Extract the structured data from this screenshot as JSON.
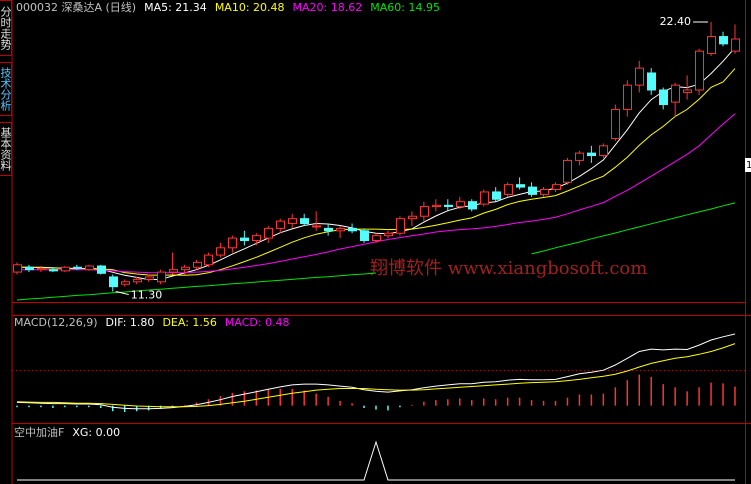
{
  "tabs": [
    "分时走势",
    "技术分析",
    "基本资料"
  ],
  "watermark": "翔博软件 www.xiangbosoft.com",
  "side_marker": "1",
  "chart_data": [
    {
      "type": "candlestick",
      "title": "000032 深桑达A (日线)",
      "high_label": "22.40",
      "low_label": "11.30",
      "up_color": "#ff3232",
      "down_color": "#54fcfc",
      "open": [
        12.1,
        12.3,
        12.2,
        12.2,
        12.15,
        12.3,
        12.2,
        12.35,
        11.9,
        11.6,
        11.7,
        11.8,
        11.7,
        12.1,
        12.2,
        12.3,
        12.4,
        12.8,
        13.1,
        13.5,
        13.4,
        13.5,
        13.9,
        14.1,
        14.3,
        14.0,
        13.9,
        13.8,
        13.9,
        13.8,
        13.4,
        13.6,
        13.7,
        14.3,
        14.4,
        14.8,
        14.85,
        14.8,
        15.0,
        14.9,
        15.4,
        15.3,
        15.7,
        15.6,
        15.3,
        15.5,
        15.8,
        16.7,
        17.0,
        16.9,
        17.6,
        18.8,
        19.8,
        20.3,
        19.6,
        19.1,
        19.5,
        19.6,
        21.1,
        21.8,
        21.2
      ],
      "high": [
        12.5,
        12.4,
        12.35,
        12.3,
        12.35,
        12.4,
        12.4,
        12.4,
        12.0,
        11.8,
        11.9,
        12.0,
        12.2,
        12.9,
        12.4,
        12.6,
        12.9,
        13.3,
        13.6,
        13.8,
        13.7,
        14.0,
        14.3,
        14.5,
        14.5,
        14.6,
        14.1,
        14.0,
        14.1,
        13.9,
        13.7,
        13.8,
        14.4,
        14.6,
        15.0,
        15.1,
        15.1,
        15.2,
        15.1,
        15.5,
        15.6,
        15.8,
        16.0,
        15.8,
        15.6,
        15.8,
        16.8,
        17.1,
        17.3,
        17.4,
        19.0,
        20.0,
        20.8,
        20.5,
        19.7,
        19.9,
        20.2,
        21.3,
        22.4,
        22.0,
        22.3
      ],
      "low": [
        12.0,
        12.1,
        12.1,
        12.1,
        12.1,
        12.2,
        12.15,
        12.0,
        11.3,
        11.5,
        11.6,
        11.7,
        11.6,
        12.0,
        12.0,
        12.2,
        12.3,
        12.7,
        12.9,
        13.2,
        13.2,
        13.3,
        13.7,
        13.9,
        14.0,
        13.8,
        13.6,
        13.5,
        13.7,
        13.3,
        13.3,
        13.5,
        13.6,
        14.0,
        14.2,
        14.6,
        14.6,
        14.7,
        14.6,
        14.8,
        15.0,
        15.2,
        15.5,
        15.2,
        15.2,
        15.4,
        15.7,
        16.5,
        16.6,
        16.8,
        17.5,
        18.5,
        19.5,
        19.4,
        18.8,
        18.5,
        19.2,
        19.4,
        21.0,
        21.4,
        21.1
      ],
      "close": [
        12.4,
        12.2,
        12.25,
        12.15,
        12.3,
        12.25,
        12.35,
        12.05,
        11.5,
        11.7,
        11.8,
        11.9,
        12.1,
        12.2,
        12.3,
        12.5,
        12.8,
        13.1,
        13.5,
        13.4,
        13.6,
        13.9,
        14.2,
        14.3,
        14.1,
        14.0,
        13.8,
        13.9,
        13.8,
        13.4,
        13.6,
        13.7,
        14.3,
        14.4,
        14.8,
        14.85,
        14.8,
        15.0,
        14.7,
        15.4,
        15.1,
        15.7,
        15.6,
        15.3,
        15.5,
        15.7,
        16.7,
        17.0,
        16.9,
        17.3,
        18.8,
        19.8,
        20.5,
        19.6,
        19.0,
        19.8,
        19.6,
        21.2,
        21.8,
        21.5,
        21.7
      ],
      "series": [
        {
          "name": "MA5: 21.34",
          "color": "#ffffff",
          "values": [
            12.3,
            12.3,
            12.3,
            12.28,
            12.26,
            12.23,
            12.26,
            12.22,
            12.09,
            11.97,
            11.88,
            11.79,
            11.8,
            11.94,
            12.06,
            12.2,
            12.38,
            12.6,
            12.84,
            13.06,
            13.28,
            13.5,
            13.72,
            13.88,
            14.02,
            14.1,
            14.08,
            14.02,
            13.92,
            13.78,
            13.7,
            13.68,
            13.76,
            13.88,
            14.16,
            14.41,
            14.63,
            14.77,
            14.83,
            14.95,
            15.0,
            15.18,
            15.3,
            15.42,
            15.44,
            15.56,
            15.76,
            16.04,
            16.36,
            16.72,
            17.34,
            17.96,
            18.66,
            19.2,
            19.54,
            19.74,
            19.7,
            19.84,
            20.28,
            20.78,
            21.34
          ]
        },
        {
          "name": "MA10: 20.48",
          "color": "#ffff00",
          "values": [
            12.3,
            12.3,
            12.28,
            12.27,
            12.26,
            12.25,
            12.24,
            12.23,
            12.2,
            12.08,
            12.02,
            11.98,
            11.97,
            11.98,
            11.97,
            11.99,
            12.07,
            12.2,
            12.36,
            12.53,
            12.71,
            12.91,
            13.12,
            13.33,
            13.51,
            13.66,
            13.76,
            13.84,
            13.87,
            13.87,
            13.87,
            13.85,
            13.86,
            13.87,
            13.94,
            14.03,
            14.13,
            14.24,
            14.33,
            14.53,
            14.68,
            14.88,
            15.01,
            15.1,
            15.17,
            15.25,
            15.44,
            15.64,
            15.86,
            16.05,
            16.42,
            16.83,
            17.32,
            17.75,
            18.1,
            18.51,
            18.8,
            19.22,
            19.71,
            19.93,
            20.48
          ]
        },
        {
          "name": "MA20: 18.62",
          "color": "#ff00ff",
          "values": [
            12.2,
            12.2,
            12.2,
            12.2,
            12.2,
            12.2,
            12.2,
            12.18,
            12.15,
            12.12,
            12.1,
            12.08,
            12.07,
            12.07,
            12.08,
            12.1,
            12.13,
            12.17,
            12.23,
            12.3,
            12.37,
            12.45,
            12.54,
            12.64,
            12.73,
            12.83,
            12.93,
            13.05,
            13.15,
            13.25,
            13.35,
            13.44,
            13.52,
            13.6,
            13.67,
            13.75,
            13.8,
            13.85,
            13.88,
            13.92,
            13.98,
            14.06,
            14.14,
            14.2,
            14.27,
            14.36,
            14.5,
            14.66,
            14.81,
            14.96,
            15.22,
            15.47,
            15.76,
            16.05,
            16.35,
            16.65,
            16.95,
            17.3,
            17.75,
            18.2,
            18.62
          ]
        },
        {
          "name": "MA60: 14.95",
          "color": "#00e600",
          "values": [
            10.95,
            10.99,
            11.02,
            11.06,
            11.1,
            11.14,
            11.17,
            11.21,
            11.25,
            11.28,
            11.32,
            11.36,
            11.39,
            11.43,
            11.47,
            11.51,
            11.54,
            11.58,
            11.62,
            11.65,
            11.69,
            11.73,
            11.76,
            11.8,
            11.84,
            11.88,
            11.91,
            11.95,
            11.99,
            12.02,
            12.06,
            null,
            null,
            null,
            null,
            null,
            null,
            null,
            null,
            null,
            null,
            null,
            null,
            12.85,
            12.97,
            13.1,
            13.22,
            13.34,
            13.47,
            13.59,
            13.71,
            13.84,
            13.96,
            14.09,
            14.21,
            14.33,
            14.46,
            14.58,
            14.7,
            14.83,
            14.95
          ]
        }
      ]
    },
    {
      "type": "line",
      "title": "MACD(12,26,9)",
      "series": [
        {
          "name": "DIF: 1.80",
          "color": "#ffffff",
          "values": [
            0.08,
            0.07,
            0.06,
            0.05,
            0.05,
            0.04,
            0.04,
            0.02,
            -0.04,
            -0.07,
            -0.08,
            -0.08,
            -0.07,
            -0.05,
            -0.02,
            0.02,
            0.08,
            0.15,
            0.23,
            0.29,
            0.35,
            0.41,
            0.47,
            0.52,
            0.54,
            0.54,
            0.52,
            0.49,
            0.46,
            0.4,
            0.36,
            0.34,
            0.37,
            0.4,
            0.45,
            0.49,
            0.52,
            0.55,
            0.55,
            0.59,
            0.6,
            0.64,
            0.66,
            0.65,
            0.65,
            0.66,
            0.73,
            0.8,
            0.84,
            0.89,
            1.02,
            1.19,
            1.36,
            1.42,
            1.4,
            1.42,
            1.41,
            1.52,
            1.65,
            1.73,
            1.8
          ]
        },
        {
          "name": "DEA: 1.56",
          "color": "#ffff00",
          "values": [
            0.1,
            0.09,
            0.08,
            0.08,
            0.07,
            0.06,
            0.06,
            0.05,
            0.03,
            0.01,
            -0.01,
            -0.02,
            -0.03,
            -0.03,
            -0.03,
            -0.02,
            0.0,
            0.03,
            0.07,
            0.11,
            0.16,
            0.21,
            0.26,
            0.31,
            0.35,
            0.39,
            0.41,
            0.43,
            0.43,
            0.43,
            0.41,
            0.4,
            0.39,
            0.39,
            0.4,
            0.42,
            0.44,
            0.46,
            0.48,
            0.5,
            0.52,
            0.54,
            0.56,
            0.58,
            0.59,
            0.6,
            0.63,
            0.66,
            0.7,
            0.74,
            0.79,
            0.87,
            0.97,
            1.06,
            1.13,
            1.19,
            1.23,
            1.29,
            1.36,
            1.45,
            1.56
          ]
        },
        {
          "name": "MACD: 0.48",
          "type": "bar",
          "color": "#ff00ff",
          "bar_color": "#ff3232",
          "neg_color": "#54fcfc",
          "values": [
            -0.04,
            -0.04,
            -0.04,
            -0.06,
            -0.04,
            -0.04,
            -0.04,
            -0.06,
            -0.14,
            -0.16,
            -0.14,
            -0.12,
            -0.08,
            -0.04,
            0.02,
            0.08,
            0.16,
            0.24,
            0.32,
            0.36,
            0.38,
            0.4,
            0.42,
            0.42,
            0.38,
            0.3,
            0.22,
            0.12,
            0.06,
            -0.06,
            -0.1,
            -0.12,
            -0.04,
            0.02,
            0.1,
            0.14,
            0.16,
            0.18,
            0.14,
            0.18,
            0.16,
            0.2,
            0.2,
            0.14,
            0.12,
            0.12,
            0.2,
            0.28,
            0.28,
            0.3,
            0.46,
            0.64,
            0.78,
            0.72,
            0.54,
            0.46,
            0.36,
            0.46,
            0.58,
            0.56,
            0.48
          ]
        }
      ]
    },
    {
      "type": "line",
      "title": "空中加油F",
      "series": [
        {
          "name": "XG: 0.00",
          "color": "#ffffff",
          "values": [
            0,
            0,
            0,
            0,
            0,
            0,
            0,
            0,
            0,
            0,
            0,
            0,
            0,
            0,
            0,
            0,
            0,
            0,
            0,
            0,
            0,
            0,
            0,
            0,
            0,
            0,
            0,
            0,
            0,
            0,
            1,
            0,
            0,
            0,
            0,
            0,
            0,
            0,
            0,
            0,
            0,
            0,
            0,
            0,
            0,
            0,
            0,
            0,
            0,
            0,
            0,
            0,
            0,
            0,
            0,
            0,
            0,
            0,
            0,
            0,
            0
          ]
        }
      ]
    }
  ]
}
